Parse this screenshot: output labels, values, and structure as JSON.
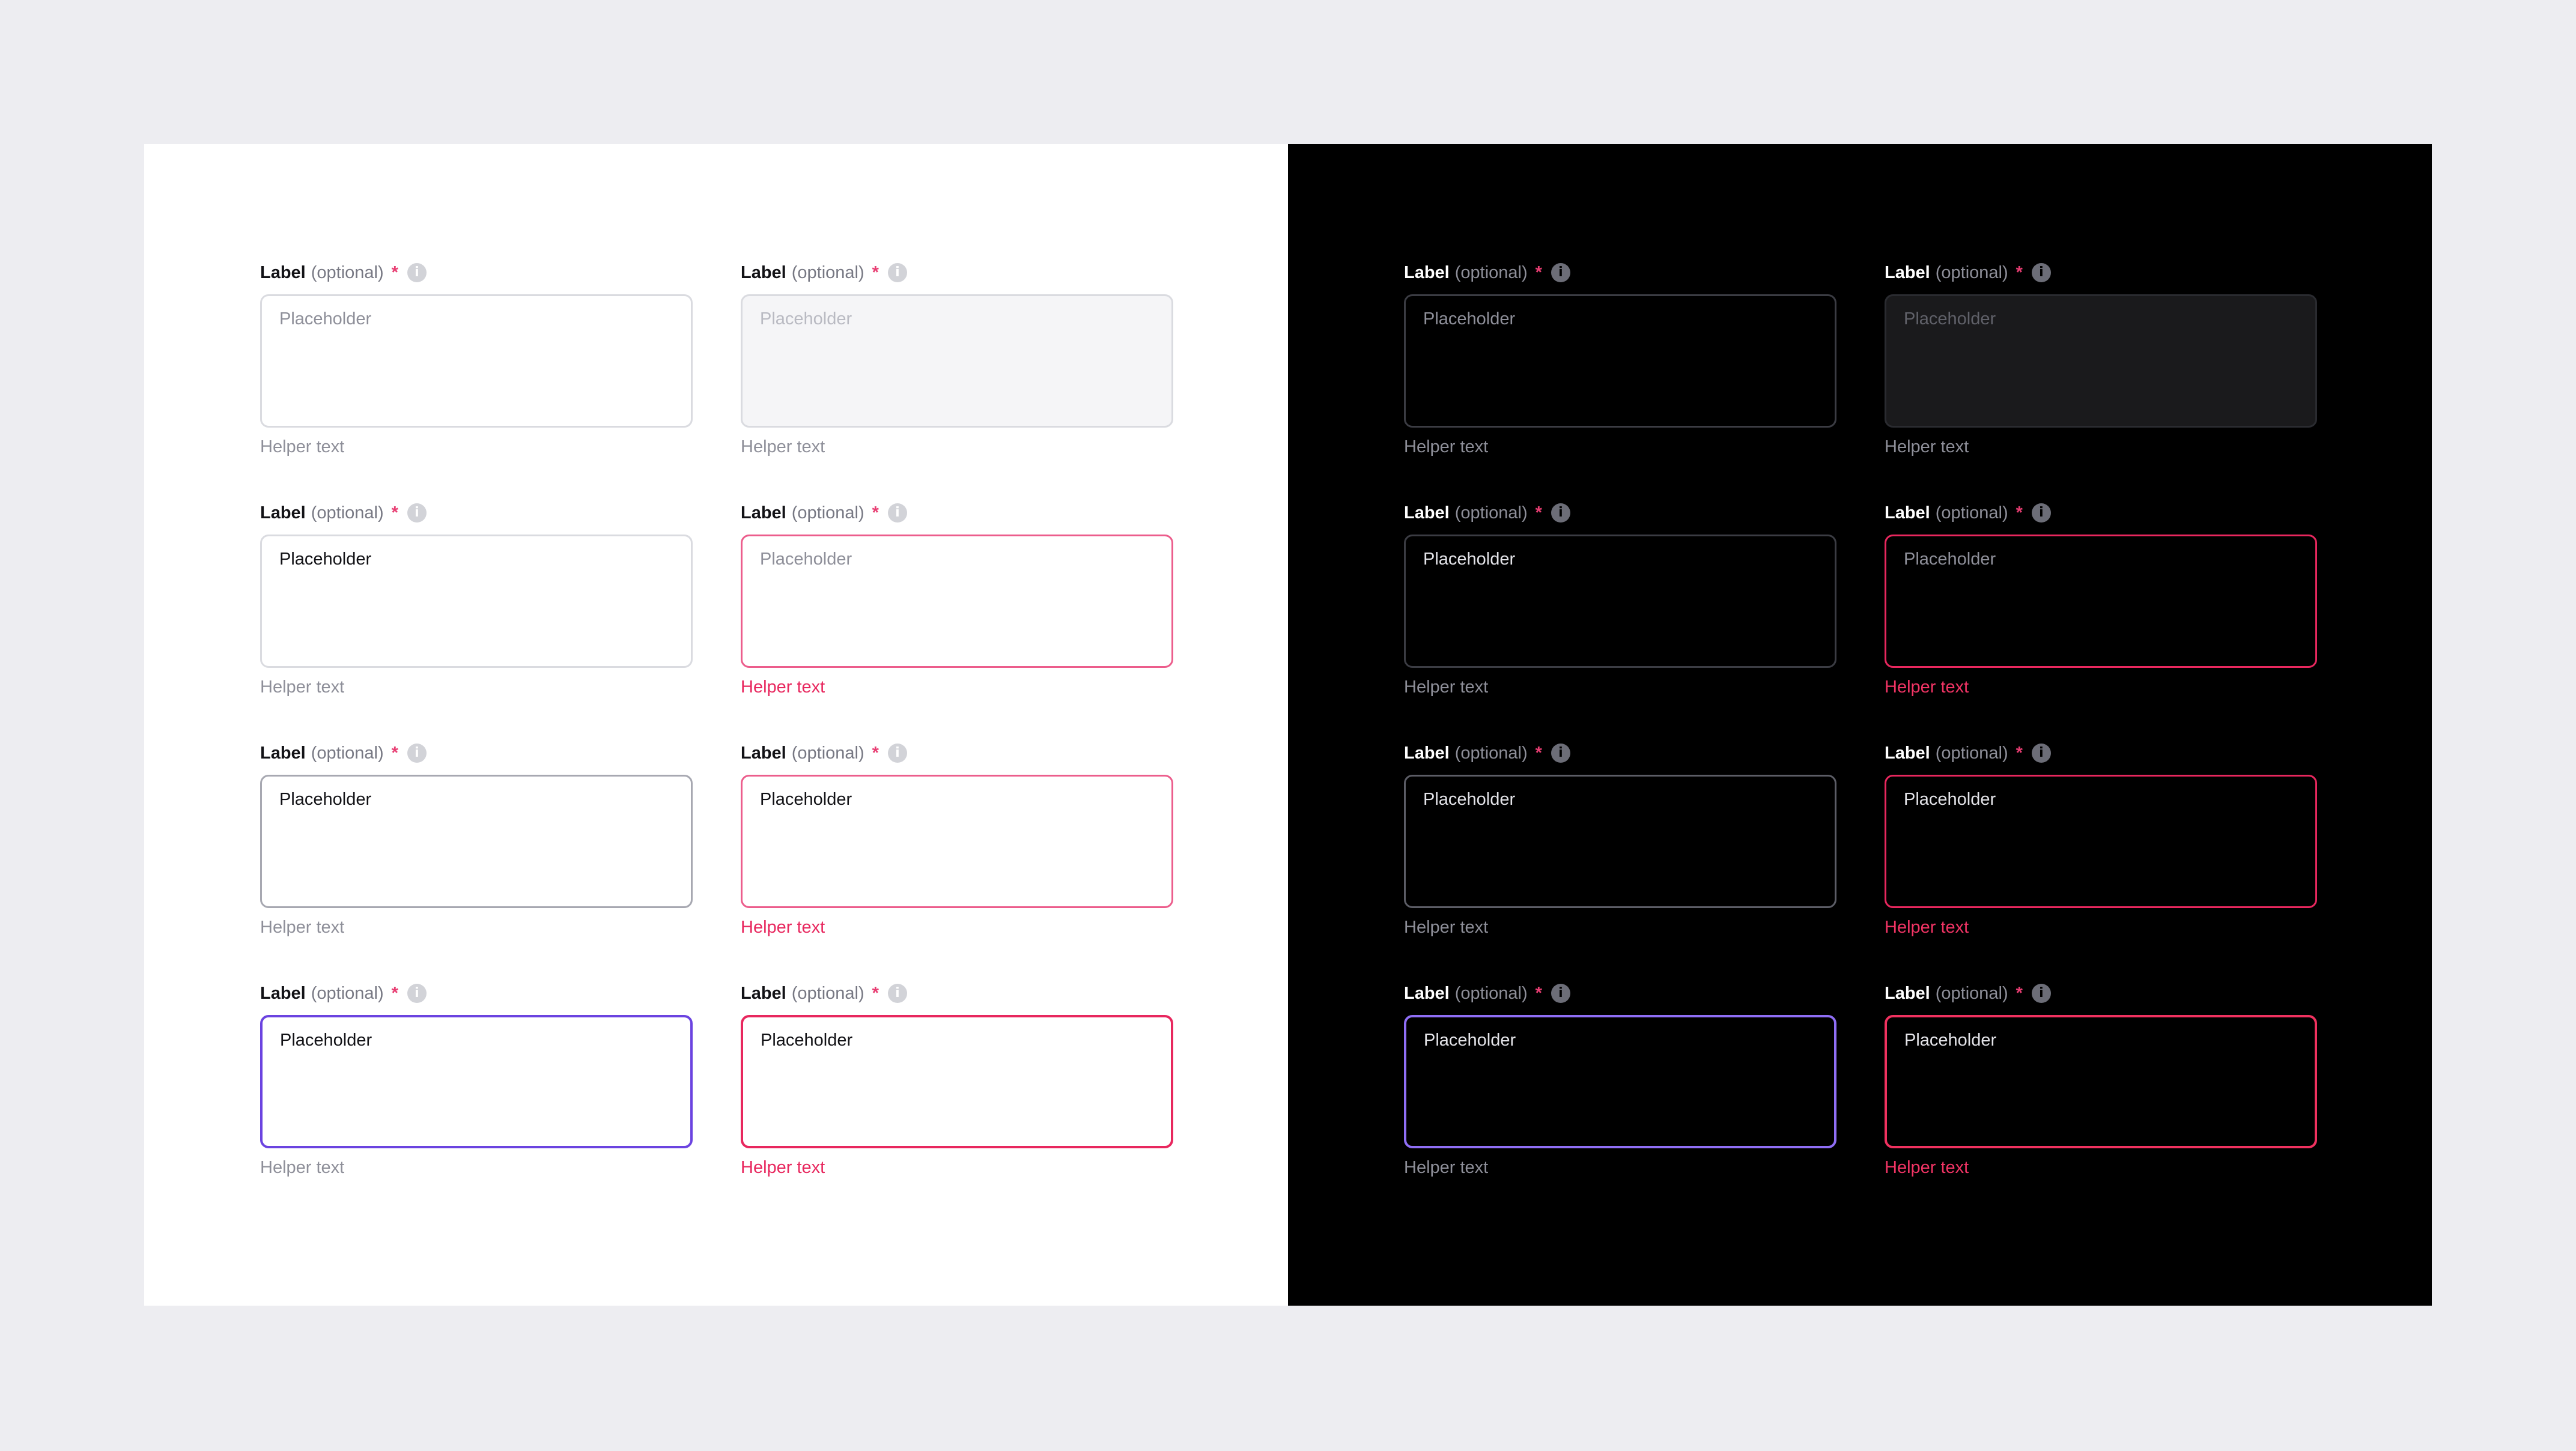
{
  "field_text": {
    "label": "Label",
    "optional": "(optional)",
    "required_mark": "*",
    "info_icon_glyph": "i",
    "placeholder": "Placeholder",
    "helper": "Helper text"
  },
  "icons": {
    "info": "info-icon"
  },
  "colors": {
    "page_background": "#ededf1",
    "light_panel": "#ffffff",
    "dark_panel": "#000000",
    "required": "#e83d72",
    "focus_light": "#6b43e0",
    "focus_dark": "#8f6ef5",
    "error": "#e8275e"
  },
  "themes": [
    {
      "name": "light",
      "fields": [
        {
          "state": "default",
          "col": 0,
          "row": 0
        },
        {
          "state": "disabled",
          "col": 1,
          "row": 0
        },
        {
          "state": "filled",
          "col": 0,
          "row": 1
        },
        {
          "state": "error",
          "col": 1,
          "row": 1
        },
        {
          "state": "hover",
          "col": 0,
          "row": 2
        },
        {
          "state": "error-filled",
          "col": 1,
          "row": 2
        },
        {
          "state": "focus",
          "col": 0,
          "row": 3
        },
        {
          "state": "error-focus",
          "col": 1,
          "row": 3
        }
      ]
    },
    {
      "name": "dark",
      "fields": [
        {
          "state": "default",
          "col": 0,
          "row": 0
        },
        {
          "state": "disabled",
          "col": 1,
          "row": 0
        },
        {
          "state": "filled",
          "col": 0,
          "row": 1
        },
        {
          "state": "error",
          "col": 1,
          "row": 1
        },
        {
          "state": "hover",
          "col": 0,
          "row": 2
        },
        {
          "state": "error-filled",
          "col": 1,
          "row": 2
        },
        {
          "state": "focus",
          "col": 0,
          "row": 3
        },
        {
          "state": "error-focus",
          "col": 1,
          "row": 3
        }
      ]
    }
  ]
}
